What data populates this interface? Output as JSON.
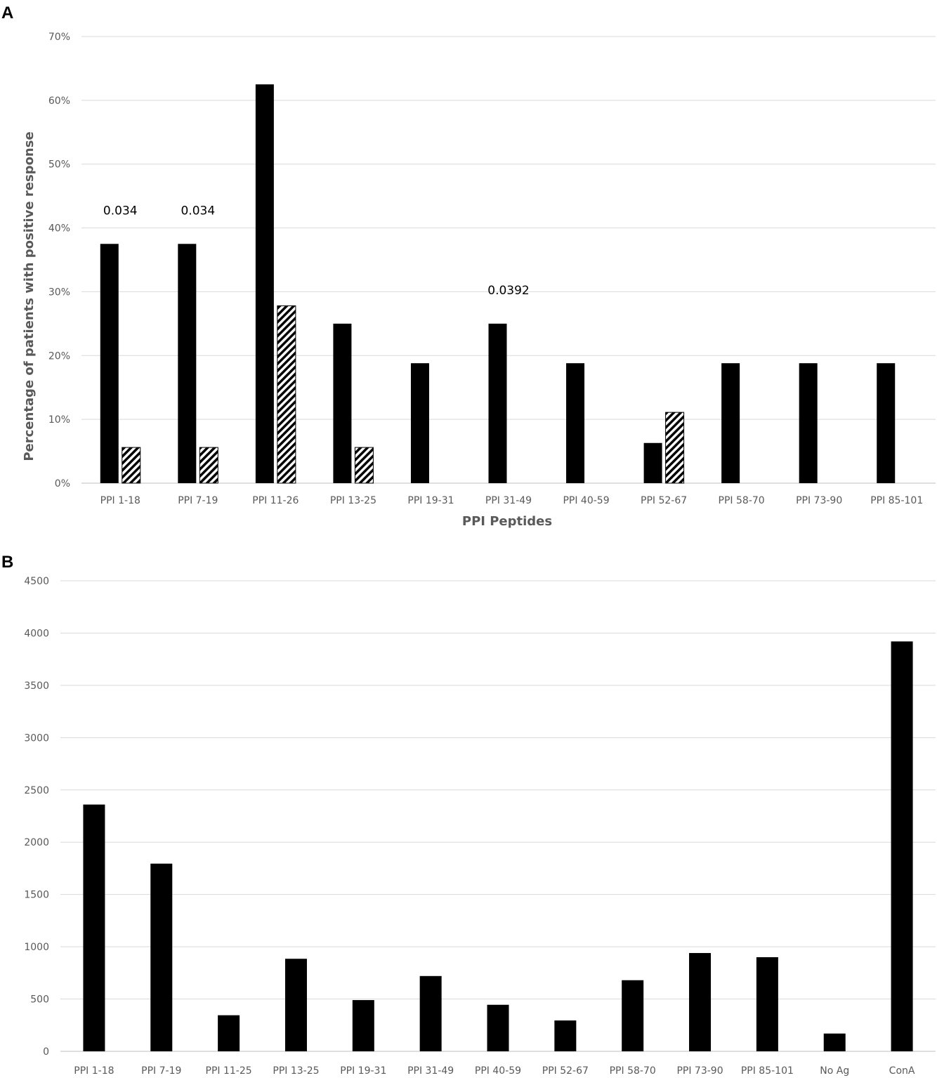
{
  "chart_data": [
    {
      "type": "bar",
      "panel_label": "A",
      "xlabel": "PPI Peptides",
      "ylabel": "Percentage of patients with positive response",
      "ylim": [
        0,
        70
      ],
      "y_unit": "%",
      "y_ticks": [
        "0%",
        "10%",
        "20%",
        "30%",
        "40%",
        "50%",
        "60%",
        "70%"
      ],
      "grid": true,
      "categories": [
        "PPI 1-18",
        "PPI 7-19",
        "PPI 11-26",
        "PPI 13-25",
        "PPI 19-31",
        "PPI 31-49",
        "PPI 40-59",
        "PPI 52-67",
        "PPI 58-70",
        "PPI 73-90",
        "PPI 85-101"
      ],
      "series": [
        {
          "fill": "solid-black",
          "color": "#000000",
          "values": [
            37.5,
            37.5,
            62.5,
            25.0,
            18.8,
            25.0,
            18.8,
            6.3,
            18.8,
            18.8,
            18.8
          ]
        },
        {
          "fill": "hatched",
          "color": "#000000",
          "values": [
            5.6,
            5.6,
            27.8,
            5.6,
            0,
            0,
            0,
            11.1,
            0,
            0,
            0
          ]
        }
      ],
      "annotations": [
        {
          "category": "PPI 1-18",
          "text": "0.034"
        },
        {
          "category": "PPI 7-19",
          "text": "0.034"
        },
        {
          "category": "PPI 31-49",
          "text": "0.0392"
        }
      ]
    },
    {
      "type": "bar",
      "panel_label": "B",
      "xlabel": "",
      "ylabel": "",
      "ylim": [
        0,
        4500
      ],
      "y_ticks": [
        "0",
        "500",
        "1000",
        "1500",
        "2000",
        "2500",
        "3000",
        "3500",
        "4000",
        "4500"
      ],
      "grid": true,
      "categories": [
        "PPI 1-18",
        "PPI 7-19",
        "PPI 11-25",
        "PPI 13-25",
        "PPI 19-31",
        "PPI 31-49",
        "PPI 40-59",
        "PPI 52-67",
        "PPI 58-70",
        "PPI 73-90",
        "PPI 85-101",
        "No Ag",
        "ConA"
      ],
      "series": [
        {
          "fill": "solid-black",
          "color": "#000000",
          "values": [
            2360,
            1795,
            345,
            885,
            490,
            720,
            445,
            295,
            680,
            940,
            900,
            170,
            3920
          ]
        }
      ]
    }
  ]
}
